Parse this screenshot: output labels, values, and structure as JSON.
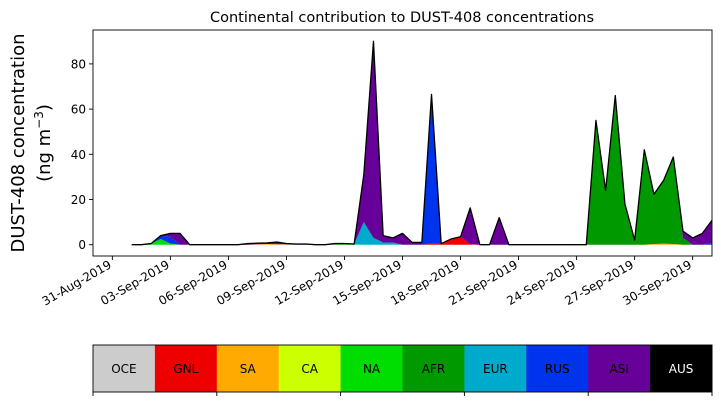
{
  "chart_data": {
    "type": "area",
    "stacked": true,
    "title": "Continental contribution to DUST-408 concentrations",
    "ylabel_line1": "DUST-408 concentration",
    "ylabel_line2_prefix": "(ng m",
    "ylabel_line2_sup": "−3",
    "ylabel_line2_suffix": ")",
    "xlim": [
      "2019-08-30",
      "2019-10-01"
    ],
    "ylim": [
      -5,
      95
    ],
    "yticks": [
      0,
      20,
      40,
      60,
      80
    ],
    "ytick_labels": [
      "0",
      "20",
      "40",
      "60",
      "80"
    ],
    "xticks": [
      "2019-08-31",
      "2019-09-03",
      "2019-09-06",
      "2019-09-09",
      "2019-09-12",
      "2019-09-15",
      "2019-09-18",
      "2019-09-21",
      "2019-09-24",
      "2019-09-27",
      "2019-09-30"
    ],
    "xtick_labels": [
      "31-Aug-2019",
      "03-Sep-2019",
      "06-Sep-2019",
      "09-Sep-2019",
      "12-Sep-2019",
      "15-Sep-2019",
      "18-Sep-2019",
      "21-Sep-2019",
      "24-Sep-2019",
      "27-Sep-2019",
      "30-Sep-2019"
    ],
    "dates": [
      "2019-09-01",
      "2019-09-01T12",
      "2019-09-02",
      "2019-09-02T12",
      "2019-09-03",
      "2019-09-03T12",
      "2019-09-04",
      "2019-09-04T12",
      "2019-09-05",
      "2019-09-05T12",
      "2019-09-06",
      "2019-09-06T12",
      "2019-09-07",
      "2019-09-07T12",
      "2019-09-08",
      "2019-09-08T12",
      "2019-09-09",
      "2019-09-09T12",
      "2019-09-10",
      "2019-09-10T12",
      "2019-09-11",
      "2019-09-11T12",
      "2019-09-12",
      "2019-09-12T12",
      "2019-09-13",
      "2019-09-13T12",
      "2019-09-14",
      "2019-09-14T12",
      "2019-09-15",
      "2019-09-15T12",
      "2019-09-16",
      "2019-09-16T12",
      "2019-09-17",
      "2019-09-17T12",
      "2019-09-18",
      "2019-09-18T12",
      "2019-09-19",
      "2019-09-19T12",
      "2019-09-20",
      "2019-09-20T12",
      "2019-09-21",
      "2019-09-21T12",
      "2019-09-22",
      "2019-09-22T12",
      "2019-09-23",
      "2019-09-23T12",
      "2019-09-24",
      "2019-09-24T12",
      "2019-09-25",
      "2019-09-25T12",
      "2019-09-26",
      "2019-09-26T12",
      "2019-09-27",
      "2019-09-27T12",
      "2019-09-28",
      "2019-09-28T12",
      "2019-09-29",
      "2019-09-29T12",
      "2019-09-30",
      "2019-09-30T12",
      "2019-10-01"
    ],
    "series": [
      {
        "name": "OCE",
        "color": "#cccccc",
        "values": [
          0,
          0,
          0,
          0,
          0,
          0,
          0,
          0,
          0,
          0,
          0,
          0,
          0,
          0,
          0,
          0,
          0,
          0,
          0,
          0,
          0,
          0,
          0,
          0,
          0,
          0,
          0,
          0,
          0,
          0,
          0,
          0,
          0,
          0,
          0,
          0,
          0,
          0,
          0,
          0,
          0,
          0,
          0,
          0,
          0,
          0,
          0,
          0,
          0,
          0,
          0,
          0,
          0,
          0,
          0,
          0,
          0,
          0,
          0,
          0,
          0
        ]
      },
      {
        "name": "GNL",
        "color": "#ee0000",
        "values": [
          0,
          0,
          0,
          0,
          0,
          0,
          0,
          0,
          0,
          0,
          0,
          0,
          0,
          0,
          0,
          0,
          0,
          0,
          0,
          0,
          0,
          0,
          0,
          0,
          0,
          0,
          0,
          0,
          0,
          0,
          0,
          0.5,
          0.5,
          2.5,
          3.5,
          0.3,
          0,
          0,
          0,
          0,
          0,
          0,
          0,
          0,
          0,
          0,
          0,
          0,
          0,
          0,
          0,
          0,
          0,
          0,
          0,
          0,
          0,
          0,
          0,
          0,
          0
        ]
      },
      {
        "name": "SA",
        "color": "#ffaa00",
        "values": [
          0,
          0,
          0,
          0,
          0,
          0,
          0,
          0,
          0,
          0,
          0,
          0,
          0,
          0.2,
          0.3,
          0.2,
          0.2,
          0,
          0,
          0,
          0,
          0,
          0,
          0,
          0,
          0,
          0,
          0,
          0,
          0,
          0,
          0,
          0,
          0,
          0,
          0,
          0,
          0,
          0,
          0,
          0,
          0,
          0,
          0,
          0,
          0,
          0,
          0,
          0,
          0,
          0,
          0,
          0,
          0,
          0.3,
          0.5,
          0.3,
          0,
          0,
          0,
          0
        ]
      },
      {
        "name": "CA",
        "color": "#ccff00",
        "values": [
          0,
          0,
          0,
          0,
          0,
          0,
          0,
          0,
          0,
          0,
          0,
          0,
          0,
          0,
          0,
          0,
          0,
          0,
          0,
          0,
          0,
          0,
          0,
          0,
          0,
          0,
          0,
          0,
          0,
          0,
          0,
          0,
          0,
          0,
          0,
          0,
          0,
          0,
          0,
          0,
          0,
          0,
          0,
          0,
          0,
          0,
          0,
          0,
          0,
          0,
          0,
          0,
          0,
          0,
          0,
          0,
          0,
          0,
          0,
          0,
          0
        ]
      },
      {
        "name": "NA",
        "color": "#00dd00",
        "values": [
          0,
          0,
          0.5,
          2.5,
          0.5,
          0,
          0,
          0,
          0,
          0,
          0,
          0,
          0,
          0,
          0,
          0,
          0,
          0,
          0,
          0,
          0,
          0.5,
          0.5,
          0.3,
          0,
          0,
          0,
          0,
          0,
          0,
          0,
          0,
          0,
          0,
          0,
          0,
          0,
          0,
          0,
          0,
          0,
          0,
          0,
          0,
          0,
          0,
          0,
          0,
          0,
          0,
          0,
          0,
          0,
          0,
          0,
          0,
          0,
          0,
          0,
          0,
          0
        ]
      },
      {
        "name": "AFR",
        "color": "#009900",
        "values": [
          0,
          0,
          0,
          0,
          0,
          0,
          0,
          0,
          0,
          0,
          0,
          0,
          0,
          0,
          0,
          0,
          0,
          0,
          0,
          0,
          0,
          0,
          0,
          0,
          0,
          0,
          0,
          0,
          0,
          0,
          0,
          0,
          0,
          0,
          0,
          0,
          0,
          0,
          0,
          0,
          0,
          0,
          0,
          0,
          0,
          0,
          0,
          0,
          55,
          24,
          66,
          18,
          2,
          42,
          22,
          28,
          38.5,
          3,
          0,
          0,
          0
        ]
      },
      {
        "name": "EUR",
        "color": "#00aacc",
        "values": [
          0,
          0,
          0,
          0,
          0,
          0,
          0,
          0,
          0,
          0,
          0,
          0,
          0,
          0,
          0,
          0,
          0,
          0,
          0,
          0,
          0,
          0,
          0,
          0,
          10,
          3,
          1,
          1,
          0,
          0,
          0,
          0,
          0,
          0,
          0,
          0,
          0,
          0,
          0,
          0,
          0,
          0,
          0,
          0,
          0,
          0,
          0,
          0,
          0,
          0,
          0,
          0,
          0,
          0,
          0,
          0,
          0,
          0,
          0,
          0,
          0
        ]
      },
      {
        "name": "RUS",
        "color": "#0033ee",
        "values": [
          0,
          0,
          0,
          1.5,
          3,
          0,
          0,
          0,
          0,
          0,
          0,
          0,
          0,
          0,
          0,
          0,
          0,
          0,
          0,
          0,
          0,
          0,
          0,
          0,
          0,
          0,
          0,
          0,
          0,
          0,
          0,
          66,
          0,
          0,
          0,
          0,
          0,
          0,
          0,
          0,
          0,
          0,
          0,
          0,
          0,
          0,
          0,
          0,
          0,
          0,
          0,
          0,
          0,
          0,
          0,
          0,
          0,
          0,
          0,
          0,
          0.8
        ]
      },
      {
        "name": "ASI",
        "color": "#660099",
        "values": [
          0,
          0,
          0,
          0,
          1.5,
          5,
          0,
          0,
          0,
          0,
          0,
          0,
          0.5,
          0.5,
          0.5,
          1,
          0.3,
          0.3,
          0.3,
          0,
          0,
          0,
          0,
          0,
          21,
          87,
          3,
          2,
          5,
          1,
          1,
          0,
          0,
          0,
          0,
          16,
          0,
          0,
          12,
          0,
          0,
          0,
          0,
          0,
          0,
          0,
          0,
          0,
          0,
          0,
          0,
          0,
          0,
          0,
          0,
          0,
          0,
          3,
          3,
          5,
          10
        ]
      },
      {
        "name": "AUS",
        "color": "#000000",
        "values": [
          0,
          0,
          0,
          0,
          0,
          0,
          0,
          0,
          0,
          0,
          0,
          0,
          0,
          0,
          0,
          0,
          0,
          0,
          0,
          0,
          0,
          0,
          0,
          0,
          0,
          0,
          0,
          0,
          0,
          0,
          0,
          0,
          0,
          0,
          0,
          0,
          0,
          0,
          0,
          0,
          0,
          0,
          0,
          0,
          0,
          0,
          0,
          0,
          0,
          0,
          0,
          0,
          0,
          0,
          0,
          0,
          0,
          0,
          0,
          0,
          0
        ]
      }
    ]
  }
}
